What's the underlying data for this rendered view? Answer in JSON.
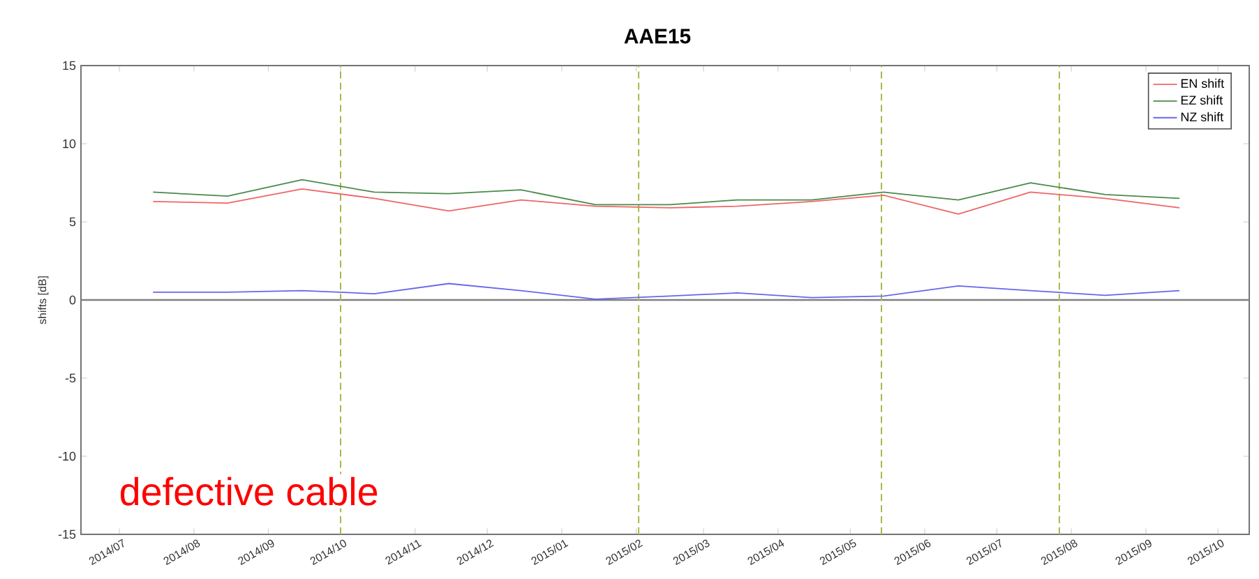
{
  "chart_data": {
    "type": "line",
    "title": "AAE15",
    "ylabel": "shifts [dB]",
    "x": [
      "2014-07-15",
      "2014-08-15",
      "2014-09-15",
      "2014-10-15",
      "2014-11-15",
      "2014-12-15",
      "2015-01-15",
      "2015-02-15",
      "2015-03-15",
      "2015-04-15",
      "2015-05-15",
      "2015-06-15",
      "2015-07-15",
      "2015-08-15",
      "2015-09-15"
    ],
    "series": [
      {
        "name": "EN shift",
        "color": "#ee6666",
        "values": [
          6.3,
          6.2,
          7.1,
          6.5,
          5.7,
          6.4,
          6.0,
          5.9,
          6.0,
          6.3,
          6.7,
          5.5,
          6.9,
          6.5,
          5.9
        ]
      },
      {
        "name": "EZ shift",
        "color": "#4a8a4a",
        "values": [
          6.9,
          6.65,
          7.7,
          6.9,
          6.8,
          7.05,
          6.1,
          6.1,
          6.4,
          6.4,
          6.9,
          6.4,
          7.5,
          6.75,
          6.5
        ]
      },
      {
        "name": "NZ shift",
        "color": "#6666ee",
        "values": [
          0.5,
          0.5,
          0.6,
          0.4,
          1.05,
          0.6,
          0.05,
          0.25,
          0.45,
          0.15,
          0.25,
          0.9,
          0.6,
          0.3,
          0.6
        ]
      }
    ],
    "xlim": [
      "2014-06-15",
      "2015-10-14"
    ],
    "xticks": [
      {
        "value": "2014-07",
        "label": "2014/07"
      },
      {
        "value": "2014-08",
        "label": "2014/08"
      },
      {
        "value": "2014-09",
        "label": "2014/09"
      },
      {
        "value": "2014-10",
        "label": "2014/10"
      },
      {
        "value": "2014-11",
        "label": "2014/11"
      },
      {
        "value": "2014-12",
        "label": "2014/12"
      },
      {
        "value": "2015-01",
        "label": "2015/01"
      },
      {
        "value": "2015-02",
        "label": "2015/02"
      },
      {
        "value": "2015-03",
        "label": "2015/03"
      },
      {
        "value": "2015-04",
        "label": "2015/04"
      },
      {
        "value": "2015-05",
        "label": "2015/05"
      },
      {
        "value": "2015-06",
        "label": "2015/06"
      },
      {
        "value": "2015-07",
        "label": "2015/07"
      },
      {
        "value": "2015-08",
        "label": "2015/08"
      },
      {
        "value": "2015-09",
        "label": "2015/09"
      },
      {
        "value": "2015-10",
        "label": "2015/10"
      }
    ],
    "ylim": [
      -15,
      15
    ],
    "yticks": [
      -15,
      -10,
      -5,
      0,
      5,
      10,
      15
    ],
    "ref_lines": [
      {
        "axis": "y",
        "value": 0,
        "color": "#808080",
        "line_style": "solid"
      },
      {
        "axis": "x",
        "value": "2014-10-01",
        "color": "#a8b84a",
        "line_style": "dashed"
      },
      {
        "axis": "x",
        "value": "2015-02-02",
        "color": "#a8b84a",
        "line_style": "dashed"
      },
      {
        "axis": "x",
        "value": "2015-05-14",
        "color": "#a8b84a",
        "line_style": "dashed"
      },
      {
        "axis": "x",
        "value": "2015-07-27",
        "color": "#a8b84a",
        "line_style": "dashed"
      }
    ],
    "annotations": [
      "defective cable"
    ],
    "legend": "top right",
    "grid": false,
    "marker": "none",
    "line_style": "solid"
  }
}
